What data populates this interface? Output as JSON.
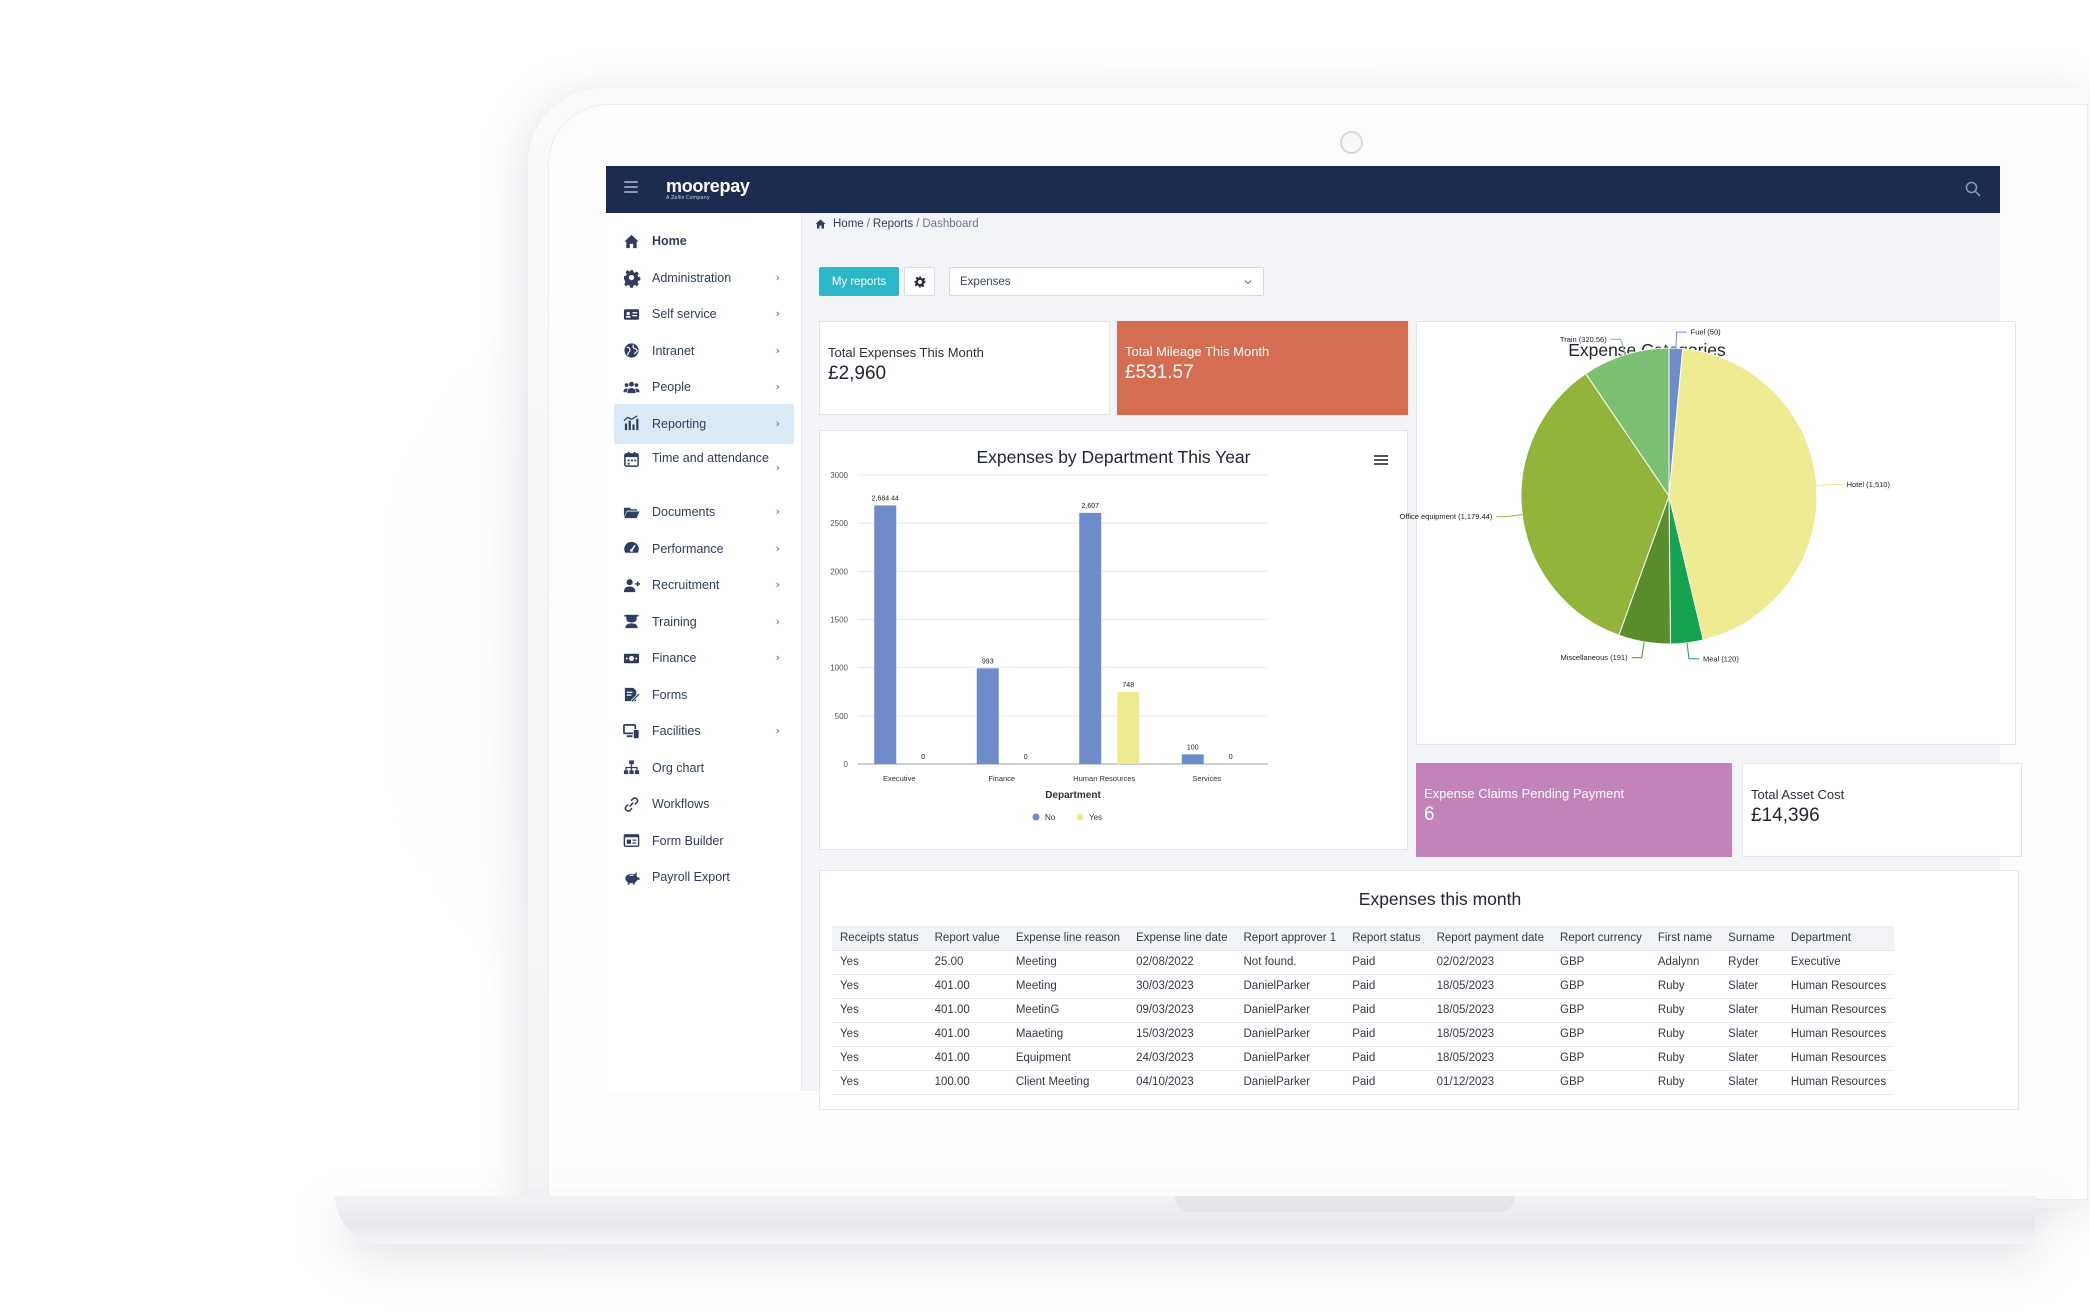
{
  "topbar": {
    "logo": "moorepay",
    "logo_sub": "A Zellis Company"
  },
  "sidebar": {
    "items": [
      {
        "label": "Home",
        "icon": "home-icon",
        "chevron": false
      },
      {
        "label": "Administration",
        "icon": "gear-icon",
        "chevron": true
      },
      {
        "label": "Self service",
        "icon": "id-card-icon",
        "chevron": true
      },
      {
        "label": "Intranet",
        "icon": "globe-icon",
        "chevron": true
      },
      {
        "label": "People",
        "icon": "people-icon",
        "chevron": true
      },
      {
        "label": "Reporting",
        "icon": "chart-icon",
        "chevron": true,
        "active": true
      },
      {
        "label": "Time and attendance",
        "icon": "calendar-icon",
        "chevron": true
      },
      {
        "label": "Documents",
        "icon": "folder-icon",
        "chevron": true
      },
      {
        "label": "Performance",
        "icon": "gauge-icon",
        "chevron": true
      },
      {
        "label": "Recruitment",
        "icon": "user-plus-icon",
        "chevron": true
      },
      {
        "label": "Training",
        "icon": "graduation-icon",
        "chevron": true
      },
      {
        "label": "Finance",
        "icon": "money-icon",
        "chevron": true
      },
      {
        "label": "Forms",
        "icon": "form-icon",
        "chevron": false
      },
      {
        "label": "Facilities",
        "icon": "devices-icon",
        "chevron": true
      },
      {
        "label": "Org chart",
        "icon": "org-chart-icon",
        "chevron": false
      },
      {
        "label": "Workflows",
        "icon": "link-icon",
        "chevron": false
      },
      {
        "label": "Form Builder",
        "icon": "form-builder-icon",
        "chevron": false
      },
      {
        "label": "Payroll Export",
        "icon": "piggy-bank-icon",
        "chevron": false
      }
    ]
  },
  "breadcrumb": {
    "home": "Home",
    "reports": "Reports",
    "current": "Dashboard"
  },
  "controls": {
    "my_reports": "My reports",
    "selected_report": "Expenses"
  },
  "kpis": {
    "total_expenses": {
      "label": "Total Expenses This Month",
      "value": "£2,960"
    },
    "total_mileage": {
      "label": "Total Mileage This Month",
      "value": "£531.57",
      "color": "#d46d52"
    },
    "claims_pending": {
      "label": "Expense Claims Pending Payment",
      "value": "6",
      "color": "#c284b8"
    },
    "asset_cost": {
      "label": "Total Asset Cost",
      "value": "£14,396"
    }
  },
  "chart_data": [
    {
      "type": "bar",
      "title": "Expenses by Department This Year",
      "xlabel": "Department",
      "ylabel": "",
      "categories": [
        "Executive",
        "Finance",
        "Human Resources",
        "Services"
      ],
      "series": [
        {
          "name": "No",
          "values": [
            2684.44,
            993,
            2607,
            100
          ],
          "labels": [
            "2,684.44",
            "993",
            "2,607",
            "100"
          ],
          "color": "#6e8cca"
        },
        {
          "name": "Yes",
          "values": [
            0,
            0,
            748,
            0
          ],
          "labels": [
            "0",
            "0",
            "748",
            "0"
          ],
          "color": "#efeb92"
        }
      ],
      "yticks": [
        "0",
        "500",
        "1000",
        "1500",
        "2000",
        "2500",
        "3000"
      ],
      "ylim": [
        0,
        3000
      ],
      "grid": true,
      "legend": "bottom-center"
    },
    {
      "type": "pie",
      "title": "Expense Categories",
      "slices": [
        {
          "name": "Fuel",
          "value": 50,
          "label": "Fuel (50)",
          "color": "#6e8cca"
        },
        {
          "name": "Hotel",
          "value": 1510,
          "label": "Hotel (1,510)",
          "color": "#efeb92"
        },
        {
          "name": "Meal",
          "value": 120,
          "label": "Meal (120)",
          "color": "#16a34f"
        },
        {
          "name": "Miscellaneous",
          "value": 191,
          "label": "Miscellaneous (191)",
          "color": "#5a8e2d"
        },
        {
          "name": "Office equipment",
          "value": 1179.44,
          "label": "Office equipment (1,179.44)",
          "color": "#93b43a"
        },
        {
          "name": "Train",
          "value": 320.56,
          "label": "Train (320.56)",
          "color": "#7bbf72"
        }
      ]
    }
  ],
  "table": {
    "title": "Expenses this month",
    "columns": [
      "Receipts status",
      "Report value",
      "Expense line reason",
      "Expense line date",
      "Report approver 1",
      "Report status",
      "Report payment date",
      "Report currency",
      "First name",
      "Surname",
      "Department"
    ],
    "rows": [
      [
        "Yes",
        "25.00",
        "Meeting",
        "02/08/2022",
        "Not found.",
        "Paid",
        "02/02/2023",
        "GBP",
        "Adalynn",
        "Ryder",
        "Executive"
      ],
      [
        "Yes",
        "401.00",
        "Meeting",
        "30/03/2023",
        "DanielParker",
        "Paid",
        "18/05/2023",
        "GBP",
        "Ruby",
        "Slater",
        "Human Resources"
      ],
      [
        "Yes",
        "401.00",
        "MeetinG",
        "09/03/2023",
        "DanielParker",
        "Paid",
        "18/05/2023",
        "GBP",
        "Ruby",
        "Slater",
        "Human Resources"
      ],
      [
        "Yes",
        "401.00",
        "Maaeting",
        "15/03/2023",
        "DanielParker",
        "Paid",
        "18/05/2023",
        "GBP",
        "Ruby",
        "Slater",
        "Human Resources"
      ],
      [
        "Yes",
        "401.00",
        "Equipment",
        "24/03/2023",
        "DanielParker",
        "Paid",
        "18/05/2023",
        "GBP",
        "Ruby",
        "Slater",
        "Human Resources"
      ],
      [
        "Yes",
        "100.00",
        "Client Meeting",
        "04/10/2023",
        "DanielParker",
        "Paid",
        "01/12/2023",
        "GBP",
        "Ruby",
        "Slater",
        "Human Resources"
      ]
    ]
  }
}
